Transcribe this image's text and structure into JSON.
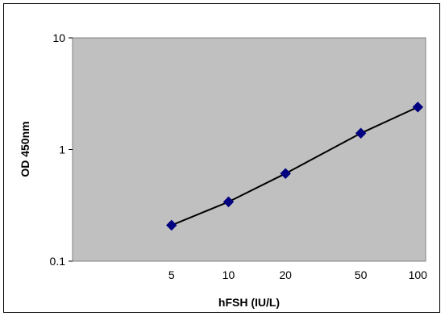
{
  "chart_data": {
    "type": "scatter",
    "title": "",
    "xlabel": "hFSH (IU/L)",
    "ylabel": "OD 450nm",
    "x_scale": "log",
    "y_scale": "log",
    "xlim": [
      1.5,
      110
    ],
    "ylim": [
      0.1,
      10
    ],
    "x_ticks": [
      "5",
      "10",
      "20",
      "50",
      "100"
    ],
    "x_tick_values": [
      5,
      10,
      20,
      50,
      100
    ],
    "y_ticks": [
      "10",
      "1",
      "0.1"
    ],
    "y_tick_values": [
      10,
      1,
      0.1
    ],
    "grid": false,
    "legend": "none",
    "series": [
      {
        "x": [
          5,
          10,
          20,
          50,
          100
        ],
        "y": [
          0.21,
          0.34,
          0.61,
          1.4,
          2.4
        ],
        "marker": "diamond",
        "trendline": true
      }
    ],
    "colors": {
      "plot_background": "#c0c0c0",
      "marker": "#000080",
      "line": "#000000"
    }
  }
}
